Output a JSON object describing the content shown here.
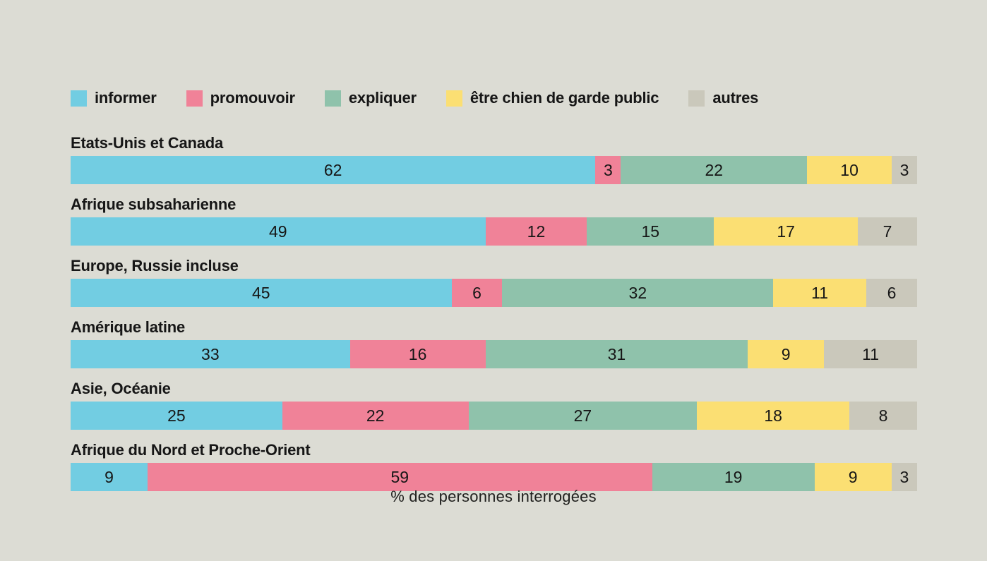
{
  "background_color": "#dcdcd4",
  "text_color": "#161616",
  "caption": "% des personnes interrogées",
  "chart_data": {
    "type": "bar",
    "variant": "horizontal-stacked",
    "title": "",
    "xlabel": "% des personnes interrogées",
    "ylabel": "",
    "xlim": [
      0,
      100
    ],
    "grid": false,
    "legend_position": "top",
    "value_labels": "inside-center",
    "categories": [
      "Etats-Unis et Canada",
      "Afrique subsaharienne",
      "Europe, Russie incluse",
      "Amérique latine",
      "Asie, Océanie",
      "Afrique du Nord et Proche-Orient"
    ],
    "series": [
      {
        "name": "informer",
        "color": "#72cde2",
        "values": [
          62,
          49,
          45,
          33,
          25,
          9
        ]
      },
      {
        "name": "promouvoir",
        "color": "#f08298",
        "values": [
          3,
          12,
          6,
          16,
          22,
          59
        ]
      },
      {
        "name": "expliquer",
        "color": "#8fc2ab",
        "values": [
          22,
          15,
          32,
          31,
          27,
          19
        ]
      },
      {
        "name": "être chien de garde public",
        "color": "#fbdf73",
        "values": [
          10,
          17,
          11,
          9,
          18,
          9
        ]
      },
      {
        "name": "autres",
        "color": "#cac8bb",
        "values": [
          3,
          7,
          6,
          11,
          8,
          3
        ]
      }
    ]
  }
}
